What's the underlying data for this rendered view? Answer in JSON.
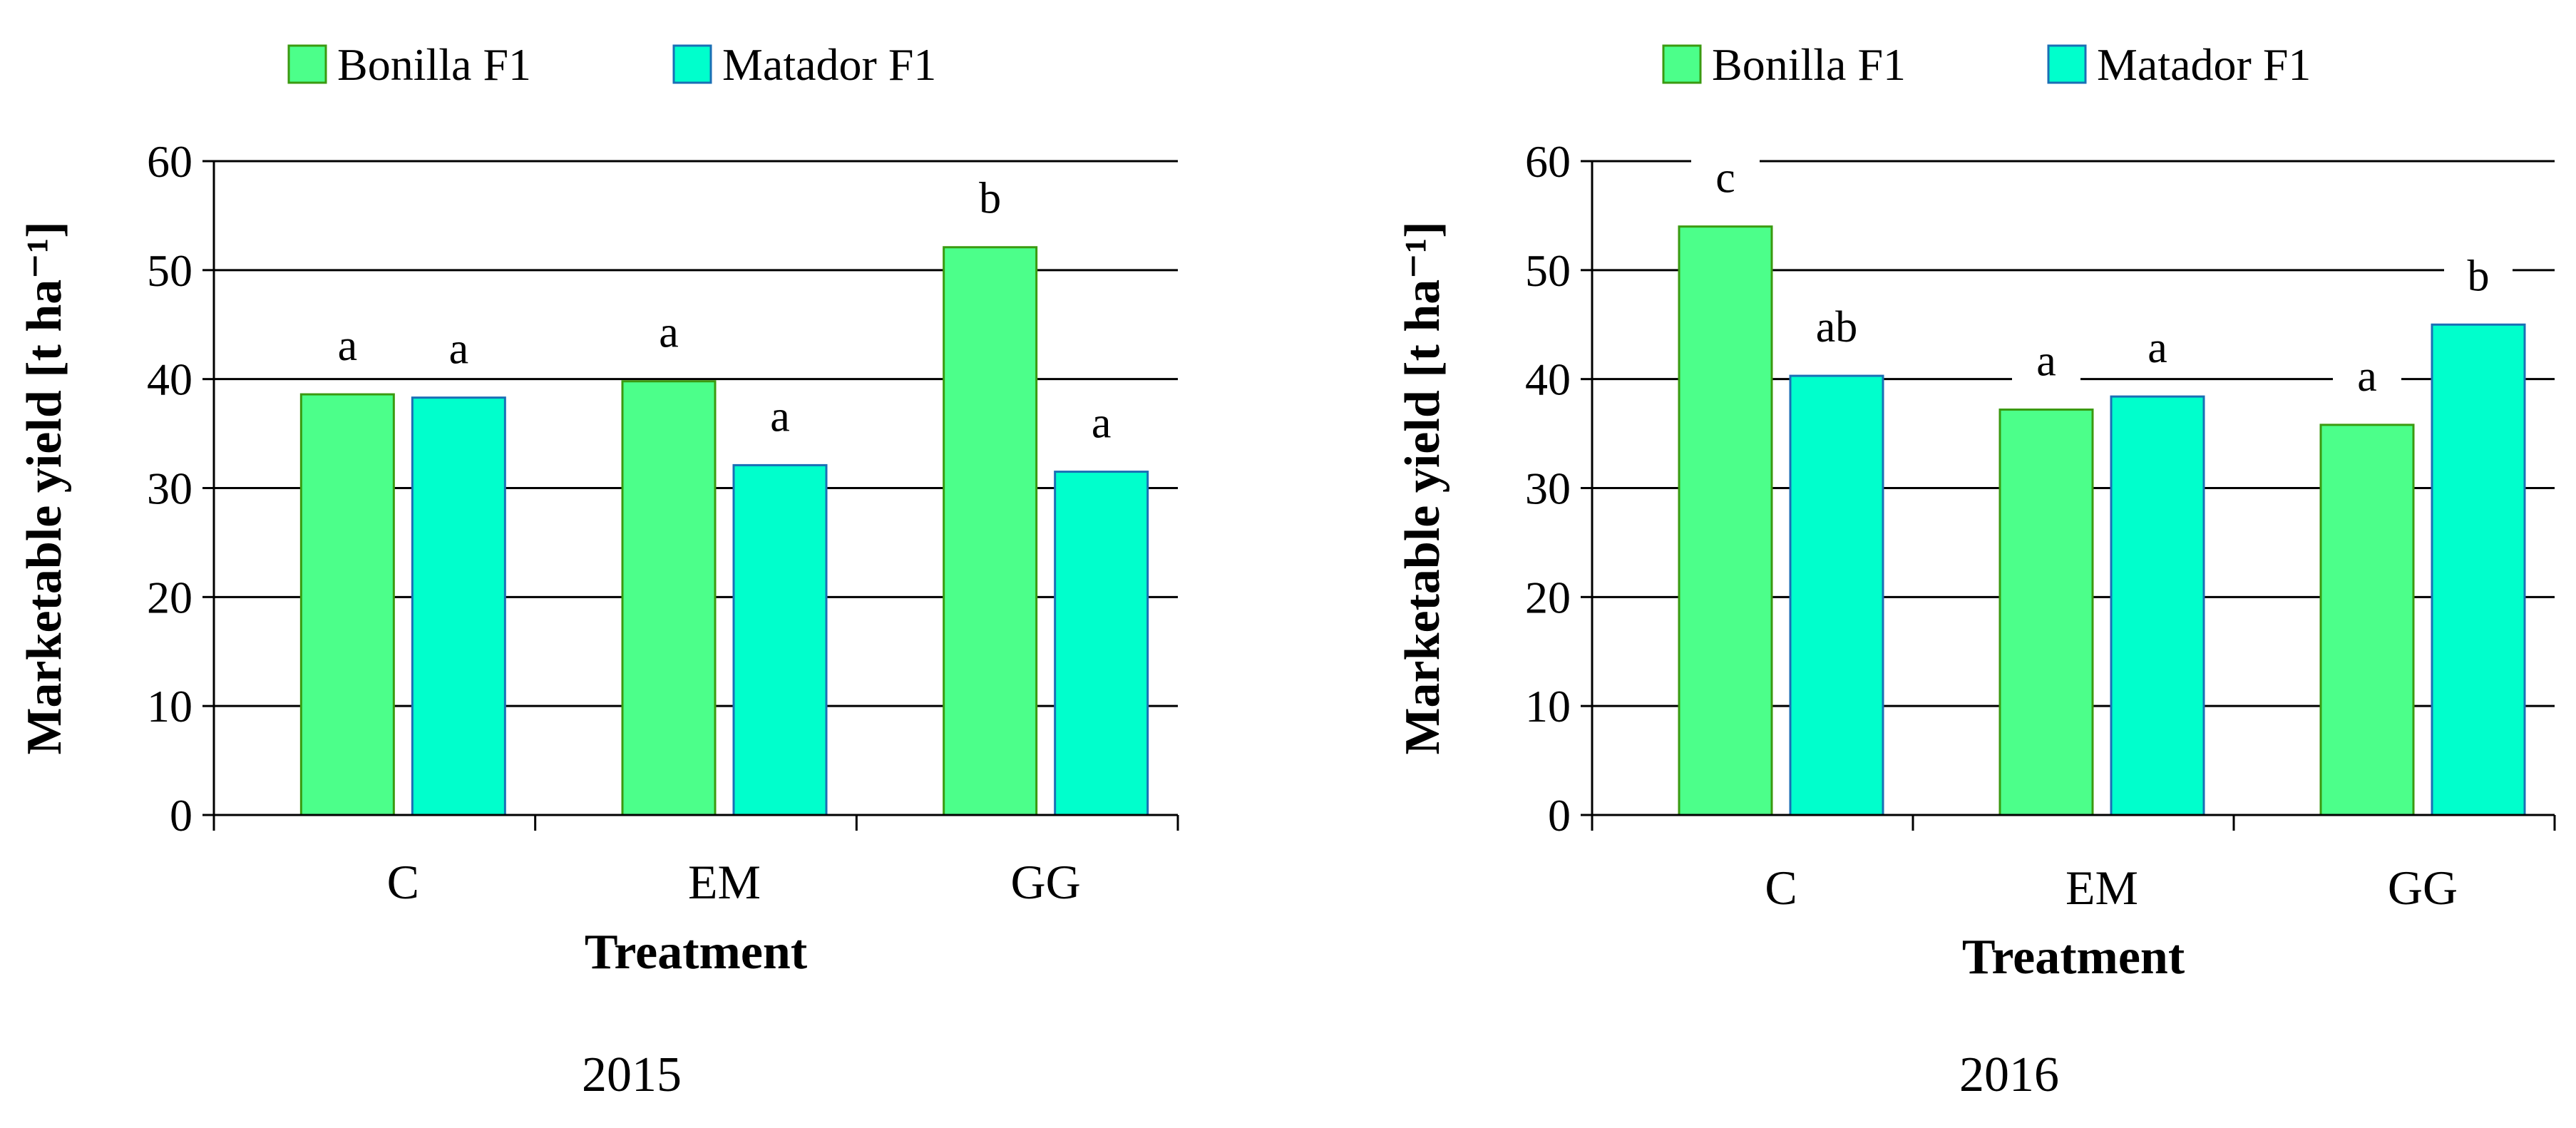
{
  "chart_data": [
    {
      "type": "bar",
      "title": "2015",
      "xlabel": "Treatment",
      "ylabel": "Marketable yield [t ha⁻¹]",
      "ylim": [
        0,
        60
      ],
      "yticks": [
        0,
        10,
        20,
        30,
        40,
        50,
        60
      ],
      "grid": true,
      "legend": "top",
      "categories": [
        "C",
        "EM",
        "GG"
      ],
      "series": [
        {
          "name": "Bonilla F1",
          "color": "#4cff8a",
          "edge": "#3a9a10",
          "values": [
            38.6,
            39.8,
            52.1
          ],
          "labels": [
            "a",
            "a",
            "b"
          ]
        },
        {
          "name": "Matador F1",
          "color": "#00ffcc",
          "edge": "#1a6fb5",
          "values": [
            38.3,
            32.1,
            31.5
          ],
          "labels": [
            "a",
            "a",
            "a"
          ]
        }
      ]
    },
    {
      "type": "bar",
      "title": "2016",
      "xlabel": "Treatment",
      "ylabel": "Marketable yield [t ha⁻¹]",
      "ylim": [
        0,
        60
      ],
      "yticks": [
        0,
        10,
        20,
        30,
        40,
        50,
        60
      ],
      "grid": true,
      "legend": "top",
      "categories": [
        "C",
        "EM",
        "GG"
      ],
      "series": [
        {
          "name": "Bonilla F1",
          "color": "#4cff8a",
          "edge": "#3a9a10",
          "values": [
            54.0,
            37.2,
            35.8
          ],
          "labels": [
            "c",
            "a",
            "a"
          ]
        },
        {
          "name": "Matador F1",
          "color": "#00ffcc",
          "edge": "#1a6fb5",
          "values": [
            40.3,
            38.4,
            45.0
          ],
          "labels": [
            "ab",
            "a",
            "b"
          ]
        }
      ]
    }
  ]
}
